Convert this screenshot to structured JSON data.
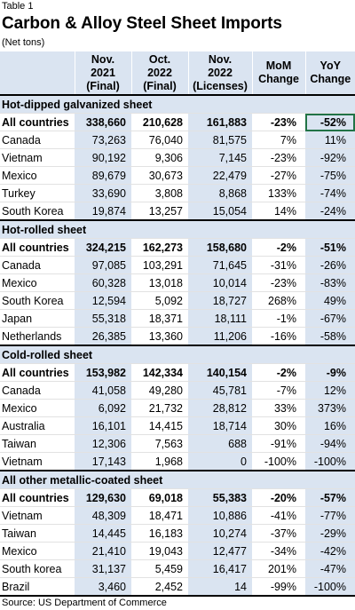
{
  "table_label": "Table 1",
  "title": "Carbon & Alloy Steel Sheet Imports",
  "subtitle": "(Net tons)",
  "headers": [
    {
      "l1": "",
      "l2": "",
      "l3": ""
    },
    {
      "l1": "Nov.",
      "l2": "2021",
      "l3": "(Final)"
    },
    {
      "l1": "Oct.",
      "l2": "2022",
      "l3": "(Final)"
    },
    {
      "l1": "Nov.",
      "l2": "2022",
      "l3": "(Licenses)"
    },
    {
      "l1": "MoM",
      "l2": "Change",
      "l3": ""
    },
    {
      "l1": "YoY",
      "l2": "Change",
      "l3": ""
    }
  ],
  "sections": [
    {
      "name": "Hot-dipped galvanized sheet",
      "rows": [
        {
          "name": "All countries",
          "v": [
            "338,660",
            "210,628",
            "161,883",
            "-23%",
            "-52%"
          ],
          "total": true
        },
        {
          "name": "Canada",
          "v": [
            "73,263",
            "76,040",
            "81,575",
            "7%",
            "11%"
          ]
        },
        {
          "name": "Vietnam",
          "v": [
            "90,192",
            "9,306",
            "7,145",
            "-23%",
            "-92%"
          ]
        },
        {
          "name": "Mexico",
          "v": [
            "89,679",
            "30,673",
            "22,479",
            "-27%",
            "-75%"
          ]
        },
        {
          "name": "Turkey",
          "v": [
            "33,690",
            "3,808",
            "8,868",
            "133%",
            "-74%"
          ]
        },
        {
          "name": "South Korea",
          "v": [
            "19,874",
            "13,257",
            "15,054",
            "14%",
            "-24%"
          ]
        }
      ]
    },
    {
      "name": "Hot-rolled sheet",
      "rows": [
        {
          "name": "All countries",
          "v": [
            "324,215",
            "162,273",
            "158,680",
            "-2%",
            "-51%"
          ],
          "total": true
        },
        {
          "name": "Canada",
          "v": [
            "97,085",
            "103,291",
            "71,645",
            "-31%",
            "-26%"
          ]
        },
        {
          "name": "Mexico",
          "v": [
            "60,328",
            "13,018",
            "10,014",
            "-23%",
            "-83%"
          ]
        },
        {
          "name": "South Korea",
          "v": [
            "12,594",
            "5,092",
            "18,727",
            "268%",
            "49%"
          ]
        },
        {
          "name": "Japan",
          "v": [
            "55,318",
            "18,371",
            "18,111",
            "-1%",
            "-67%"
          ]
        },
        {
          "name": "Netherlands",
          "v": [
            "26,385",
            "13,360",
            "11,206",
            "-16%",
            "-58%"
          ]
        }
      ]
    },
    {
      "name": "Cold-rolled sheet",
      "rows": [
        {
          "name": "All countries",
          "v": [
            "153,982",
            "142,334",
            "140,154",
            "-2%",
            "-9%"
          ],
          "total": true
        },
        {
          "name": "Canada",
          "v": [
            "41,058",
            "49,280",
            "45,781",
            "-7%",
            "12%"
          ]
        },
        {
          "name": "Mexico",
          "v": [
            "6,092",
            "21,732",
            "28,812",
            "33%",
            "373%"
          ]
        },
        {
          "name": "Australia",
          "v": [
            "16,101",
            "14,415",
            "18,714",
            "30%",
            "16%"
          ]
        },
        {
          "name": "Taiwan",
          "v": [
            "12,306",
            "7,563",
            "688",
            "-91%",
            "-94%"
          ]
        },
        {
          "name": "Vietnam",
          "v": [
            "17,143",
            "1,968",
            "0",
            "-100%",
            "-100%"
          ]
        }
      ]
    },
    {
      "name": "All other metallic-coated sheet",
      "rows": [
        {
          "name": "All countries",
          "v": [
            "129,630",
            "69,018",
            "55,383",
            "-20%",
            "-57%"
          ],
          "total": true
        },
        {
          "name": "Vietnam",
          "v": [
            "48,309",
            "18,471",
            "10,886",
            "-41%",
            "-77%"
          ]
        },
        {
          "name": "Taiwan",
          "v": [
            "14,445",
            "16,183",
            "10,274",
            "-37%",
            "-29%"
          ]
        },
        {
          "name": "Mexico",
          "v": [
            "21,410",
            "19,043",
            "12,477",
            "-34%",
            "-42%"
          ]
        },
        {
          "name": "South korea",
          "v": [
            "31,137",
            "5,459",
            "16,417",
            "201%",
            "-47%"
          ]
        },
        {
          "name": "Brazil",
          "v": [
            "3,460",
            "2,452",
            "14",
            "-99%",
            "-100%"
          ]
        }
      ]
    }
  ],
  "source": "Source: US Department of Commerce",
  "accent_colors": {
    "header_fill": "#dae4f1",
    "selection": "#217346"
  }
}
